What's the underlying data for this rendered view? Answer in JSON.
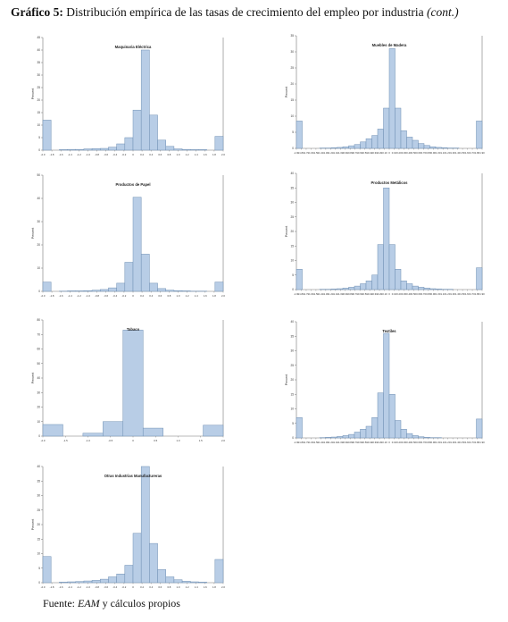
{
  "figure": {
    "label": "Gráfico 5:",
    "title": "Distribución empírica de las tasas de crecimiento del empleo por industria",
    "title_suffix": "(cont.)",
    "source_prefix": "Fuente:",
    "source_em": "EAM",
    "source_rest": "y cálculos propios"
  },
  "colors": {
    "bar_fill": "#b8cde6",
    "bar_stroke": "#6f8fb3",
    "axis": "#777777",
    "text": "#333333"
  },
  "chart_data": [
    {
      "type": "bar",
      "title": "Maquinaria Eléctrica",
      "ylabel": "Percent",
      "xlabel": "",
      "ylim": [
        0,
        45
      ],
      "yticks": [
        0,
        5,
        10,
        15,
        20,
        25,
        30,
        35,
        40,
        45
      ],
      "xticks": [
        "-2.0",
        "-1.8",
        "-1.6",
        "-1.4",
        "-1.2",
        "-1.0",
        "-0.8",
        "-0.6",
        "-0.4",
        "-0.2",
        "0",
        "0.2",
        "0.4",
        "0.6",
        "0.8",
        "1.0",
        "1.2",
        "1.4",
        "1.6",
        "1.8",
        "2.0"
      ],
      "values": [
        12,
        0,
        0.2,
        0.3,
        0.3,
        0.5,
        0.6,
        0.7,
        1.2,
        2.5,
        5,
        16,
        40,
        14,
        4,
        1.5,
        0.5,
        0.3,
        0.2,
        0.2,
        0,
        5.5
      ],
      "grid": false
    },
    {
      "type": "bar",
      "title": "Muebles de Madera",
      "ylabel": "Percent",
      "xlabel": "",
      "ylim": [
        0,
        35
      ],
      "yticks": [
        0,
        5,
        10,
        15,
        20,
        25,
        30,
        35
      ],
      "xticks": [
        "-1.90",
        "-1.80",
        "-1.70",
        "-1.60",
        "-1.50",
        "-1.40",
        "-1.30",
        "-1.20",
        "-1.10",
        "-1.00",
        "-0.90",
        "-0.80",
        "-0.70",
        "-0.60",
        "-0.50",
        "-0.40",
        "-0.30",
        "-0.20",
        "-0.10",
        "0",
        "0.10",
        "0.20",
        "0.30",
        "0.40",
        "0.50",
        "0.60",
        "0.70",
        "0.80",
        "0.90",
        "1.00",
        "1.10",
        "1.20",
        "1.30",
        "1.40",
        "1.50",
        "1.60",
        "1.70",
        "1.80",
        "1.90"
      ],
      "values": [
        8.5,
        0,
        0,
        0,
        0.1,
        0.1,
        0.2,
        0.3,
        0.5,
        0.8,
        1.2,
        2,
        3,
        4,
        6,
        12.5,
        31,
        12.5,
        5.5,
        3.5,
        2.5,
        1.5,
        0.9,
        0.5,
        0.3,
        0.2,
        0.1,
        0.1,
        0,
        0,
        0,
        8.5
      ],
      "grid": false
    },
    {
      "type": "bar",
      "title": "Productos de Papel",
      "ylabel": "Percent",
      "xlabel": "",
      "ylim": [
        0,
        50
      ],
      "yticks": [
        0,
        10,
        20,
        30,
        40,
        50
      ],
      "xticks": [
        "-2.0",
        "-1.8",
        "-1.6",
        "-1.4",
        "-1.2",
        "-1.0",
        "-0.8",
        "-0.6",
        "-0.4",
        "-0.2",
        "0",
        "0.2",
        "0.4",
        "0.6",
        "0.8",
        "1.0",
        "1.2",
        "1.4",
        "1.6",
        "1.8",
        "2.0"
      ],
      "values": [
        4,
        0,
        0.1,
        0.2,
        0.2,
        0.3,
        0.5,
        0.8,
        1.5,
        3.5,
        12.5,
        40.5,
        16,
        3.5,
        1.2,
        0.5,
        0.3,
        0.2,
        0.1,
        0.1,
        0,
        4
      ],
      "grid": false
    },
    {
      "type": "bar",
      "title": "Productos Metálicos",
      "ylabel": "Percent",
      "xlabel": "",
      "ylim": [
        0,
        40
      ],
      "yticks": [
        0,
        5,
        10,
        15,
        20,
        25,
        30,
        35,
        40
      ],
      "xticks": [
        "-1.90",
        "-1.80",
        "-1.70",
        "-1.60",
        "-1.50",
        "-1.40",
        "-1.30",
        "-1.20",
        "-1.10",
        "-1.00",
        "-0.90",
        "-0.80",
        "-0.70",
        "-0.60",
        "-0.50",
        "-0.40",
        "-0.30",
        "-0.20",
        "-0.10",
        "0",
        "0.10",
        "0.20",
        "0.30",
        "0.40",
        "0.50",
        "0.60",
        "0.70",
        "0.80",
        "0.90",
        "1.00",
        "1.10",
        "1.20",
        "1.30",
        "1.40",
        "1.50",
        "1.60",
        "1.70",
        "1.80",
        "1.90"
      ],
      "values": [
        7,
        0,
        0,
        0,
        0.1,
        0.1,
        0.2,
        0.3,
        0.5,
        0.8,
        1.2,
        2,
        3,
        5,
        15.5,
        35,
        15.5,
        7,
        3,
        2,
        1.2,
        0.8,
        0.5,
        0.3,
        0.2,
        0.1,
        0.1,
        0,
        0,
        0,
        0,
        7.5
      ],
      "grid": false
    },
    {
      "type": "bar",
      "title": "Tabaco",
      "ylabel": "Percent",
      "xlabel": "",
      "ylim": [
        0,
        80
      ],
      "yticks": [
        0,
        10,
        20,
        30,
        40,
        50,
        60,
        70,
        80
      ],
      "xticks": [
        "-2.0",
        "-1.5",
        "-1.0",
        "-0.5",
        "0",
        "0.5",
        "1.0",
        "1.5",
        "2.0"
      ],
      "values": [
        8,
        0,
        2,
        10,
        73,
        5.5,
        0,
        0,
        7.5
      ],
      "grid": false
    },
    {
      "type": "bar",
      "title": "Textiles",
      "ylabel": "Percent",
      "xlabel": "",
      "ylim": [
        0,
        40
      ],
      "yticks": [
        0,
        5,
        10,
        15,
        20,
        25,
        30,
        35,
        40
      ],
      "xticks": [
        "-1.90",
        "-1.80",
        "-1.70",
        "-1.60",
        "-1.50",
        "-1.40",
        "-1.30",
        "-1.20",
        "-1.10",
        "-1.00",
        "-0.90",
        "-0.80",
        "-0.70",
        "-0.60",
        "-0.50",
        "-0.40",
        "-0.30",
        "-0.20",
        "-0.10",
        "0",
        "0.10",
        "0.20",
        "0.30",
        "0.40",
        "0.50",
        "0.60",
        "0.70",
        "0.80",
        "0.90",
        "1.00",
        "1.10",
        "1.20",
        "1.30",
        "1.40",
        "1.50",
        "1.60",
        "1.70",
        "1.80",
        "1.90"
      ],
      "values": [
        7,
        0,
        0,
        0,
        0.1,
        0.2,
        0.3,
        0.5,
        0.8,
        1.2,
        2,
        3,
        4,
        7,
        15.5,
        36,
        15,
        6,
        3,
        1.5,
        0.8,
        0.4,
        0.2,
        0.1,
        0.1,
        0,
        0,
        0,
        0,
        0,
        0,
        6.5
      ],
      "grid": false
    },
    {
      "type": "bar",
      "title": "Otras Industrias Manufactureras",
      "ylabel": "Percent",
      "xlabel": "",
      "ylim": [
        0,
        40
      ],
      "yticks": [
        0,
        5,
        10,
        15,
        20,
        25,
        30,
        35,
        40
      ],
      "xticks": [
        "-2.0",
        "-1.8",
        "-1.6",
        "-1.4",
        "-1.2",
        "-1.0",
        "-0.8",
        "-0.6",
        "-0.4",
        "-0.2",
        "0",
        "0.2",
        "0.4",
        "0.6",
        "0.8",
        "1.0",
        "1.2",
        "1.4",
        "1.6",
        "1.8",
        "2.0"
      ],
      "values": [
        9,
        0,
        0.2,
        0.3,
        0.4,
        0.6,
        0.8,
        1.2,
        2,
        3,
        6,
        17,
        40,
        13.5,
        4.5,
        2,
        1,
        0.5,
        0.3,
        0.2,
        0,
        8
      ],
      "grid": false
    }
  ]
}
